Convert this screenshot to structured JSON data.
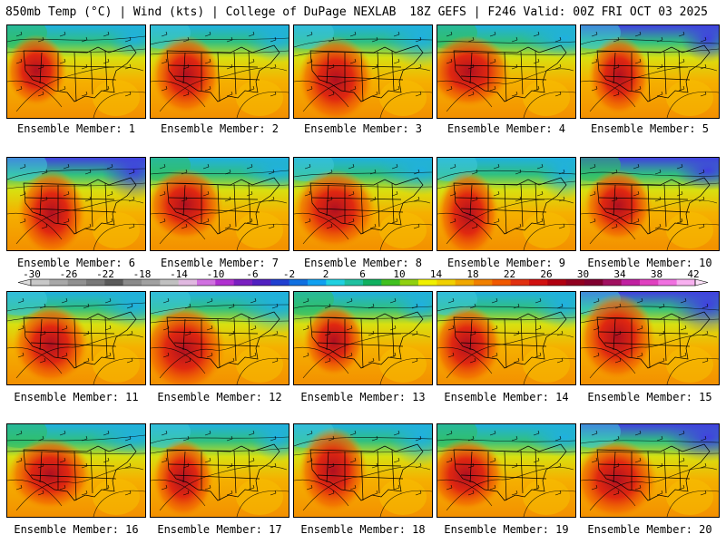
{
  "header": {
    "left": "850mb Temp (°C) | Wind (kts) | College of DuPage NEXLAB",
    "right": "18Z GEFS | F246 Valid: 00Z FRI OCT 03 2025"
  },
  "colorbar": {
    "labels": [
      "-30",
      "-26",
      "-22",
      "-18",
      "-14",
      "-10",
      "-6",
      "-2",
      "2",
      "6",
      "10",
      "14",
      "18",
      "22",
      "26",
      "30",
      "34",
      "38",
      "42"
    ],
    "colors": [
      "#c8c8c8",
      "#a8a8a8",
      "#909090",
      "#787878",
      "#5a5a5a",
      "#8a8a8a",
      "#a0a0a0",
      "#c0c0c0",
      "#e0b8e0",
      "#d070e0",
      "#b030d0",
      "#7a20c0",
      "#5020c0",
      "#2040d0",
      "#1070e0",
      "#10a0f0",
      "#20d0e0",
      "#20c0a0",
      "#10b060",
      "#40c020",
      "#90d010",
      "#f0f000",
      "#f0d000",
      "#f0a800",
      "#f08000",
      "#f05800",
      "#e03010",
      "#d01010",
      "#b00010",
      "#900020",
      "#800030",
      "#a01060",
      "#c020a0",
      "#e040c0",
      "#f070e0",
      "#f8b0f0"
    ]
  },
  "panels": [
    {
      "caption": "Ensemble Member: 1"
    },
    {
      "caption": "Ensemble Member: 2"
    },
    {
      "caption": "Ensemble Member: 3"
    },
    {
      "caption": "Ensemble Member: 4"
    },
    {
      "caption": "Ensemble Member: 5"
    },
    {
      "caption": "Ensemble Member: 6"
    },
    {
      "caption": "Ensemble Member: 7"
    },
    {
      "caption": "Ensemble Member: 8"
    },
    {
      "caption": "Ensemble Member: 9"
    },
    {
      "caption": "Ensemble Member: 10"
    },
    {
      "caption": "Ensemble Member: 11"
    },
    {
      "caption": "Ensemble Member: 12"
    },
    {
      "caption": "Ensemble Member: 13"
    },
    {
      "caption": "Ensemble Member: 14"
    },
    {
      "caption": "Ensemble Member: 15"
    },
    {
      "caption": "Ensemble Member: 16"
    },
    {
      "caption": "Ensemble Member: 17"
    },
    {
      "caption": "Ensemble Member: 18"
    },
    {
      "caption": "Ensemble Member: 19"
    },
    {
      "caption": "Ensemble Member: 20"
    }
  ]
}
